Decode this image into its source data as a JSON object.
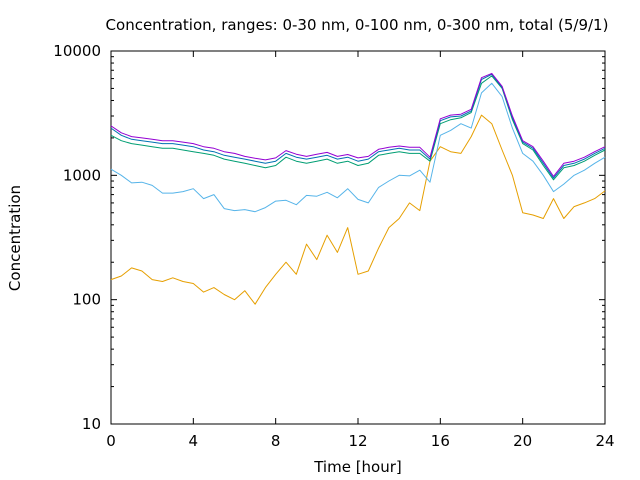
{
  "chart_data": {
    "type": "line",
    "title": "Concentration, ranges: 0-30 nm, 0-100 nm, 0-300 nm, total (5/9/1)",
    "xlabel": "Time [hour]",
    "ylabel": "Concentration",
    "xlim": [
      0,
      24
    ],
    "ylim": [
      10,
      10000
    ],
    "yscale": "log",
    "grid": false,
    "legend": "none",
    "x_ticks": [
      0,
      4,
      8,
      12,
      16,
      20,
      24
    ],
    "y_ticks": [
      10,
      100,
      1000,
      10000
    ],
    "x_tick_labels": [
      "0",
      "4",
      "8",
      "12",
      "16",
      "20",
      "24"
    ],
    "y_tick_labels": [
      "10",
      "100",
      "1000",
      "10000"
    ],
    "x": [
      0,
      0.5,
      1,
      1.5,
      2,
      2.5,
      3,
      3.5,
      4,
      4.5,
      5,
      5.5,
      6,
      6.5,
      7,
      7.5,
      8,
      8.5,
      9,
      9.5,
      10,
      10.5,
      11,
      11.5,
      12,
      12.5,
      13,
      13.5,
      14,
      14.5,
      15,
      15.5,
      16,
      16.5,
      17,
      17.5,
      18,
      18.5,
      19,
      19.5,
      20,
      20.5,
      21,
      21.5,
      22,
      22.5,
      23,
      23.5,
      24
    ],
    "series": [
      {
        "color": "#e69f00",
        "values": [
          145,
          155,
          180,
          170,
          145,
          140,
          150,
          140,
          135,
          115,
          125,
          110,
          100,
          118,
          92,
          125,
          160,
          200,
          160,
          280,
          210,
          330,
          240,
          380,
          160,
          170,
          260,
          380,
          450,
          600,
          520,
          1300,
          1700,
          1550,
          1500,
          2050,
          3050,
          2600,
          1600,
          1000,
          500,
          480,
          450,
          650,
          450,
          560,
          600,
          650,
          750
        ]
      },
      {
        "color": "#56b4e9",
        "values": [
          1120,
          1000,
          870,
          880,
          830,
          720,
          720,
          740,
          780,
          650,
          700,
          540,
          520,
          530,
          510,
          550,
          620,
          630,
          580,
          690,
          680,
          730,
          660,
          780,
          640,
          600,
          800,
          900,
          1000,
          990,
          1100,
          880,
          2100,
          2300,
          2600,
          2400,
          4600,
          5500,
          4300,
          2400,
          1500,
          1300,
          1000,
          740,
          850,
          1000,
          1100,
          1250,
          1400
        ]
      },
      {
        "color": "#009e73",
        "values": [
          2100,
          1900,
          1800,
          1750,
          1700,
          1650,
          1650,
          1600,
          1550,
          1500,
          1450,
          1350,
          1300,
          1250,
          1200,
          1150,
          1200,
          1400,
          1300,
          1250,
          1300,
          1350,
          1250,
          1300,
          1200,
          1250,
          1450,
          1500,
          1550,
          1500,
          1500,
          1300,
          2600,
          2800,
          2900,
          3200,
          5500,
          6300,
          5000,
          2800,
          1800,
          1600,
          1200,
          920,
          1150,
          1200,
          1300,
          1450,
          1600
        ]
      },
      {
        "color": "#0072b2",
        "values": [
          2400,
          2100,
          1950,
          1900,
          1850,
          1800,
          1800,
          1750,
          1700,
          1600,
          1550,
          1450,
          1400,
          1350,
          1300,
          1250,
          1300,
          1500,
          1400,
          1350,
          1400,
          1450,
          1350,
          1400,
          1300,
          1350,
          1550,
          1600,
          1650,
          1600,
          1600,
          1350,
          2750,
          2950,
          3000,
          3300,
          5900,
          6500,
          5100,
          2900,
          1850,
          1650,
          1250,
          950,
          1200,
          1250,
          1350,
          1500,
          1650
        ]
      },
      {
        "color": "#9400d3",
        "values": [
          2500,
          2200,
          2050,
          2000,
          1950,
          1900,
          1900,
          1850,
          1800,
          1700,
          1650,
          1550,
          1500,
          1420,
          1370,
          1330,
          1380,
          1580,
          1480,
          1420,
          1480,
          1530,
          1420,
          1470,
          1380,
          1420,
          1620,
          1680,
          1720,
          1680,
          1680,
          1400,
          2850,
          3050,
          3100,
          3400,
          6100,
          6600,
          5200,
          3000,
          1900,
          1700,
          1300,
          980,
          1250,
          1300,
          1400,
          1550,
          1700
        ]
      }
    ]
  }
}
